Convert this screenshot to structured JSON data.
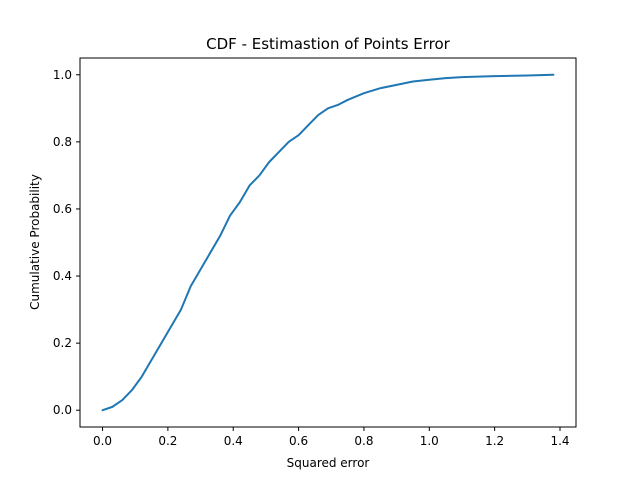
{
  "chart_data": {
    "type": "line",
    "title": "CDF - Estimastion of Points Error",
    "xlabel": "Squared error",
    "ylabel": "Cumulative Probability",
    "xlim": [
      -0.069,
      1.449
    ],
    "ylim": [
      -0.05,
      1.05
    ],
    "xticks": [
      0.0,
      0.2,
      0.4,
      0.6,
      0.8,
      1.0,
      1.2,
      1.4
    ],
    "xtick_labels": [
      "0.0",
      "0.2",
      "0.4",
      "0.6",
      "0.8",
      "1.0",
      "1.2",
      "1.4"
    ],
    "yticks": [
      0.0,
      0.2,
      0.4,
      0.6,
      0.8,
      1.0
    ],
    "ytick_labels": [
      "0.0",
      "0.2",
      "0.4",
      "0.6",
      "0.8",
      "1.0"
    ],
    "grid": false,
    "legend": null,
    "series": [
      {
        "color": "#1f77b4",
        "x": [
          0.0,
          0.03,
          0.06,
          0.09,
          0.12,
          0.15,
          0.18,
          0.21,
          0.24,
          0.27,
          0.3,
          0.33,
          0.36,
          0.39,
          0.42,
          0.45,
          0.48,
          0.51,
          0.54,
          0.57,
          0.6,
          0.63,
          0.66,
          0.69,
          0.72,
          0.75,
          0.8,
          0.85,
          0.9,
          0.95,
          1.0,
          1.05,
          1.1,
          1.2,
          1.3,
          1.38
        ],
        "y": [
          0.0,
          0.01,
          0.03,
          0.06,
          0.1,
          0.15,
          0.2,
          0.25,
          0.3,
          0.37,
          0.42,
          0.47,
          0.52,
          0.58,
          0.62,
          0.67,
          0.7,
          0.74,
          0.77,
          0.8,
          0.82,
          0.85,
          0.88,
          0.9,
          0.91,
          0.925,
          0.945,
          0.96,
          0.97,
          0.98,
          0.985,
          0.99,
          0.993,
          0.996,
          0.998,
          1.0
        ]
      }
    ]
  }
}
